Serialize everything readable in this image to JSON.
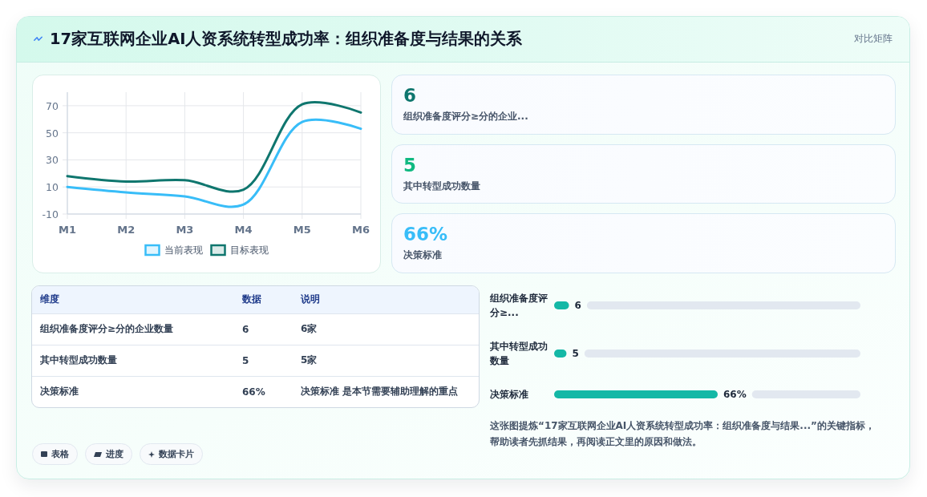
{
  "chart_data": [
    {
      "type": "other",
      "title": "17家互联网企业AI人资系统转型成功率：组织准备度与结果的关系",
      "annotations": [
        "对比矩阵"
      ]
    },
    {
      "type": "line",
      "categories": [
        "M1",
        "M2",
        "M3",
        "M4",
        "M5",
        "M6"
      ],
      "series": [
        {
          "name": "当前表现",
          "color": "#38bdf8",
          "values": [
            10,
            6,
            3,
            -3,
            58,
            53
          ]
        },
        {
          "name": "目标表现",
          "color": "#0f766e",
          "values": [
            18,
            14,
            15,
            8,
            71,
            65
          ]
        }
      ],
      "ylim": [
        -10,
        80
      ],
      "yticks": [
        -10,
        10,
        30,
        50,
        70
      ],
      "grid": true,
      "legend": "bottom"
    },
    {
      "type": "other",
      "categories": [
        "组织准备度评分≥分的企业...",
        "其中转型成功数量",
        "决策标准"
      ],
      "value_labels": [
        "6",
        "5",
        "66%"
      ]
    },
    {
      "type": "other",
      "categories": [
        "维度",
        "数据",
        "说明"
      ],
      "cell_labels": [
        [
          "组织准备度评分≥分的企业数量",
          "6",
          "6家"
        ],
        [
          "其中转型成功数量",
          "5",
          "5家"
        ],
        [
          "决策标准",
          "66%",
          "决策标准 是本节需要辅助理解的重点"
        ]
      ]
    },
    {
      "type": "bar",
      "orientation": "horizontal",
      "categories": [
        "组织准备度评分≥...",
        "其中转型成功数量",
        "决策标准"
      ],
      "values": [
        6,
        5,
        66
      ],
      "value_labels": [
        "6",
        "5",
        "66%"
      ],
      "color": "#14b8a6",
      "annotations": [
        "这张图提炼“17家互联网企业AI人资系统转型成功率：组织准备度与结果...”的关键指标，帮助读者先抓结果，再阅读正文里的原因和做法。"
      ]
    },
    {
      "type": "other",
      "annotations": [
        "表格",
        "进度",
        "数据卡片"
      ]
    }
  ]
}
